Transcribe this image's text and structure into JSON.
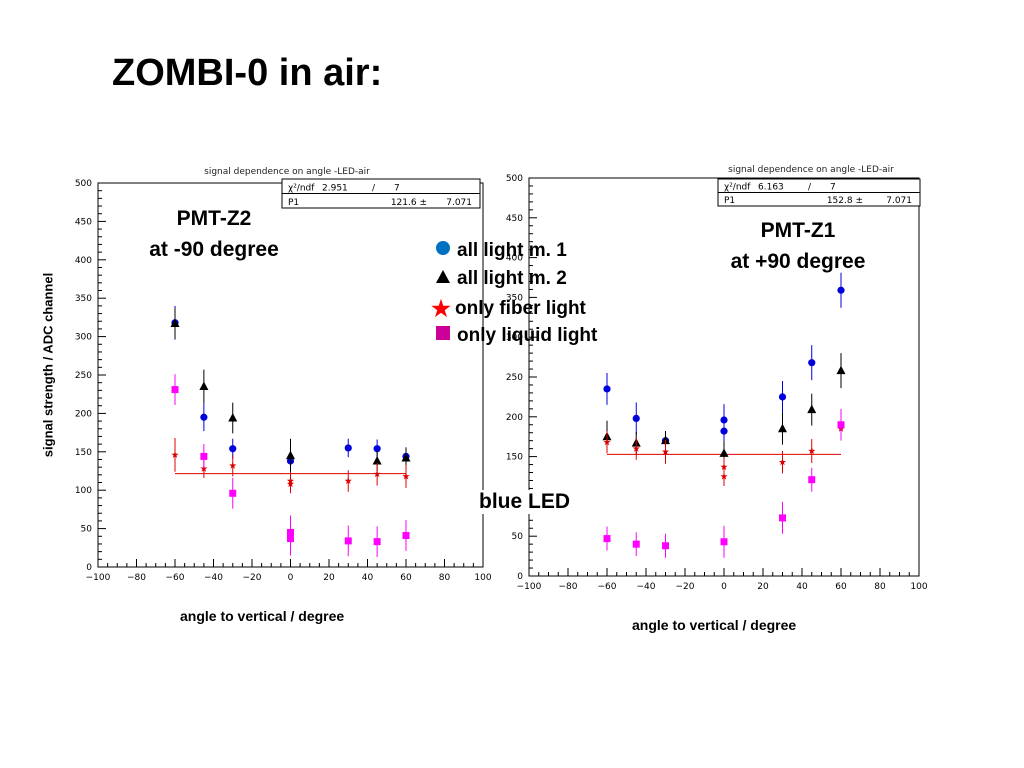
{
  "slide_title": "ZOMBI-0 in air:",
  "y_axis_label": "signal strength / ADC channel",
  "legend": {
    "m1": "all light m. 1",
    "m2": "all light m. 2",
    "fiber": "only fiber light",
    "liquid": "only liquid light"
  },
  "blue_led": "blue LED",
  "left": {
    "pmt_line1": "PMT-Z2",
    "pmt_line2": "at -90 degree",
    "xlabel": "angle to vertical / degree"
  },
  "right": {
    "pmt_line1": "PMT-Z1",
    "pmt_line2": "at  +90 degree",
    "xlabel": "angle to vertical / degree"
  },
  "colors": {
    "m1": "#0000dd",
    "m2": "#000000",
    "fiber": "#dd0000",
    "liquid": "#ff00ff",
    "fit": "#dd0000"
  },
  "chart_data": [
    {
      "type": "scatter",
      "title": "signal dependence on angle -LED-air",
      "xlabel": "angle to vertical / degree",
      "ylabel": "signal strength / ADC channel",
      "xlim": [
        -100,
        100
      ],
      "ylim": [
        0,
        500
      ],
      "x_ticks": [
        "−100",
        "−80",
        "−60",
        "−40",
        "−20",
        "0",
        "20",
        "40",
        "60",
        "80",
        "100"
      ],
      "y_ticks": [
        "0",
        "50",
        "100",
        "150",
        "200",
        "250",
        "300",
        "350",
        "400",
        "450",
        "500"
      ],
      "stats": {
        "chi2_label": "χ²/ndf",
        "chi2": "2.951",
        "slash": "/",
        "ndf": "7",
        "p_label": "P1",
        "p_value": "121.6 ±",
        "p_error": "7.071"
      },
      "fit": {
        "y": 121.6,
        "x_range": [
          -60,
          60
        ]
      },
      "series": [
        {
          "key": "m1",
          "name": "all light m. 1",
          "marker": "circle",
          "points": [
            [
              -60,
              318,
              22
            ],
            [
              -45,
              195,
              18
            ],
            [
              -30,
              154,
              13
            ],
            [
              0,
              138,
              13
            ],
            [
              30,
              155,
              12
            ],
            [
              45,
              154,
              12
            ],
            [
              60,
              144,
              12
            ]
          ]
        },
        {
          "key": "m2",
          "name": "all light m. 2",
          "marker": "triangle",
          "points": [
            [
              -60,
              317,
              20
            ],
            [
              -45,
              235,
              22
            ],
            [
              -30,
              194,
              20
            ],
            [
              0,
              145,
              22
            ],
            [
              45,
              138,
              13
            ],
            [
              60,
              142,
              13
            ]
          ]
        },
        {
          "key": "fiber",
          "name": "only fiber light",
          "marker": "star",
          "points": [
            [
              -60,
              146,
              22
            ],
            [
              -45,
              128,
              12
            ],
            [
              -30,
              132,
              14
            ],
            [
              0,
              108,
              12
            ],
            [
              0,
              112,
              12
            ],
            [
              30,
              112,
              14
            ],
            [
              45,
              121,
              15
            ],
            [
              60,
              118,
              15
            ]
          ]
        },
        {
          "key": "liquid",
          "name": "only liquid light",
          "marker": "square",
          "points": [
            [
              -60,
              231,
              20
            ],
            [
              -45,
              144,
              16
            ],
            [
              -30,
              96,
              20
            ],
            [
              0,
              45,
              22
            ],
            [
              0,
              37,
              22
            ],
            [
              30,
              34,
              20
            ],
            [
              45,
              33,
              20
            ],
            [
              60,
              41,
              20
            ]
          ]
        }
      ]
    },
    {
      "type": "scatter",
      "title": "signal dependence on angle -LED-air",
      "xlabel": "angle to vertical / degree",
      "ylabel": "",
      "xlim": [
        -100,
        100
      ],
      "ylim": [
        0,
        500
      ],
      "x_ticks": [
        "−100",
        "−80",
        "−60",
        "−40",
        "−20",
        "0",
        "20",
        "40",
        "60",
        "80",
        "100"
      ],
      "y_ticks": [
        "0",
        "50",
        "100",
        "150",
        "200",
        "250",
        "300",
        "350",
        "400",
        "450",
        "500"
      ],
      "stats": {
        "chi2_label": "χ²/ndf",
        "chi2": "6.163",
        "slash": "/",
        "ndf": "7",
        "p_label": "P1",
        "p_value": "152.8 ±",
        "p_error": "7.071"
      },
      "fit": {
        "y": 152.8,
        "x_range": [
          -60,
          60
        ]
      },
      "series": [
        {
          "key": "m1",
          "name": "all light m. 1",
          "marker": "circle",
          "points": [
            [
              -60,
              235,
              20
            ],
            [
              -45,
              198,
              20
            ],
            [
              -30,
              170,
              12
            ],
            [
              0,
              196,
              20
            ],
            [
              0,
              182,
              20
            ],
            [
              30,
              225,
              20
            ],
            [
              45,
              268,
              22
            ],
            [
              60,
              359,
              22
            ]
          ]
        },
        {
          "key": "m2",
          "name": "all light m. 2",
          "marker": "triangle",
          "points": [
            [
              -60,
              175,
              20
            ],
            [
              -45,
              167,
              14
            ],
            [
              -30,
              170,
              12
            ],
            [
              0,
              154,
              15
            ],
            [
              30,
              185,
              20
            ],
            [
              45,
              209,
              20
            ],
            [
              60,
              258,
              22
            ]
          ]
        },
        {
          "key": "fiber",
          "name": "only fiber light",
          "marker": "star",
          "points": [
            [
              -60,
              168,
              14
            ],
            [
              -45,
              160,
              14
            ],
            [
              -30,
              156,
              15
            ],
            [
              0,
              137,
              12
            ],
            [
              0,
              125,
              12
            ],
            [
              30,
              143,
              14
            ],
            [
              45,
              157,
              15
            ],
            [
              60,
              185,
              12
            ]
          ]
        },
        {
          "key": "liquid",
          "name": "only liquid light",
          "marker": "square",
          "points": [
            [
              -60,
              47,
              15
            ],
            [
              -45,
              40,
              15
            ],
            [
              -30,
              38,
              15
            ],
            [
              0,
              43,
              20
            ],
            [
              30,
              73,
              20
            ],
            [
              45,
              121,
              15
            ],
            [
              60,
              190,
              20
            ]
          ]
        }
      ]
    }
  ]
}
